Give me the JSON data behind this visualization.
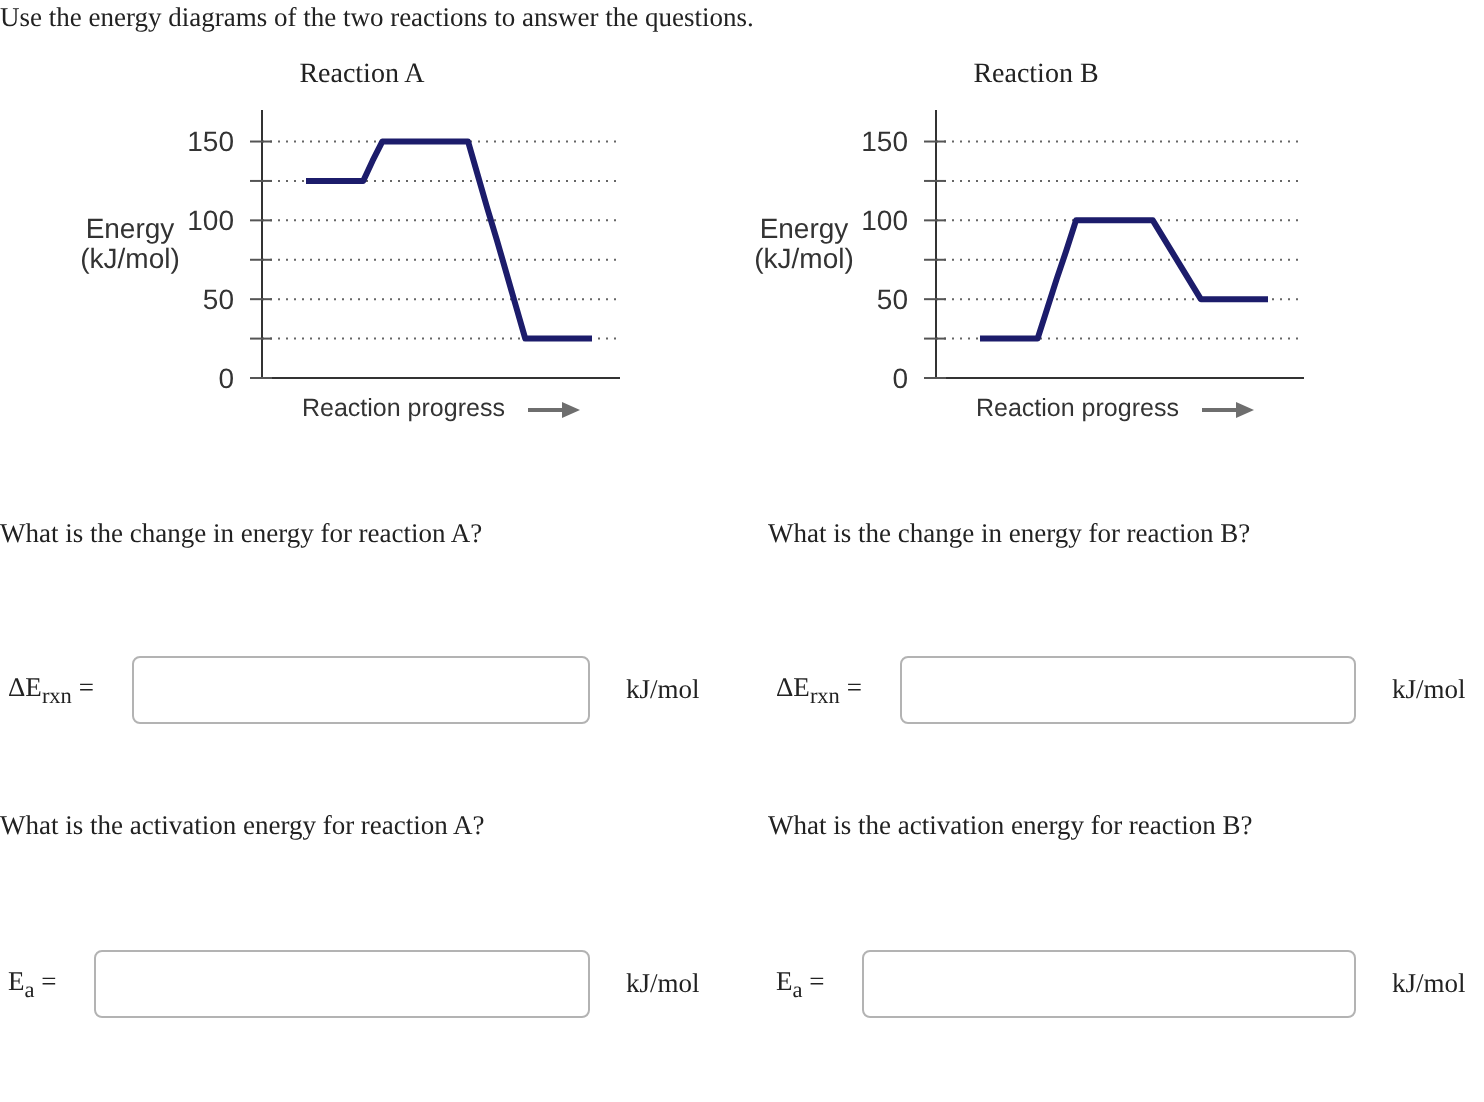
{
  "chart_data": [
    {
      "type": "other",
      "title": "Use the energy diagrams of the two reactions to answer the questions."
    },
    {
      "type": "line",
      "title": "Reaction A",
      "xlabel": "Reaction progress",
      "ylabel": "Energy (kJ/mol)",
      "categories": [
        null,
        null,
        null,
        null,
        null,
        null,
        null,
        null,
        null,
        null,
        null,
        null,
        null,
        null,
        null,
        null,
        null,
        null,
        null,
        null,
        null,
        null,
        null,
        null,
        null,
        null,
        null,
        null,
        null,
        null,
        null
      ],
      "values": [
        125,
        125,
        125,
        125,
        125,
        125,
        125,
        138,
        150,
        150,
        150,
        150,
        150,
        150,
        150,
        150,
        150,
        150,
        129,
        108,
        88,
        67,
        46,
        25,
        25,
        25,
        25,
        25,
        25,
        25,
        25
      ],
      "color": "#1c1c6b",
      "ylim": [
        0,
        170
      ],
      "yticks": [
        0,
        {
          "value": 25,
          "label": null
        },
        50,
        {
          "value": 75,
          "label": null
        },
        100,
        {
          "value": 125,
          "label": null
        },
        150
      ],
      "grid": "y",
      "tick_labels": "y",
      "annotations": [
        "What is the change in energy for reaction A?",
        "ΔE$_{rxn}$ =",
        "kJ/mol",
        "What is the activation energy for reaction A?",
        "E$_{a}$ =",
        "kJ/mol"
      ]
    },
    {
      "type": "line",
      "title": "Reaction B",
      "xlabel": "Reaction progress",
      "ylabel": "Energy (kJ/mol)",
      "categories": [
        null,
        null,
        null,
        null,
        null,
        null,
        null,
        null,
        null,
        null,
        null,
        null,
        null,
        null,
        null,
        null,
        null,
        null,
        null,
        null,
        null,
        null,
        null,
        null,
        null,
        null,
        null,
        null,
        null,
        null,
        null
      ],
      "values": [
        25,
        25,
        25,
        25,
        25,
        25,
        25,
        44,
        63,
        81,
        100,
        100,
        100,
        100,
        100,
        100,
        100,
        100,
        100,
        90,
        80,
        70,
        60,
        50,
        50,
        50,
        50,
        50,
        50,
        50,
        50
      ],
      "color": "#1c1c6b",
      "ylim": [
        0,
        170
      ],
      "yticks": [
        0,
        {
          "value": 25,
          "label": null
        },
        50,
        {
          "value": 75,
          "label": null
        },
        100,
        {
          "value": 125,
          "label": null
        },
        150
      ],
      "grid": "y",
      "tick_labels": "y",
      "annotations": [
        "What is the change in energy for reaction B?",
        "ΔE$_{rxn}$ =",
        "kJ/mol",
        "What is the activation energy for reaction B?",
        "E$_{a}$ =",
        "kJ/mol"
      ]
    }
  ]
}
